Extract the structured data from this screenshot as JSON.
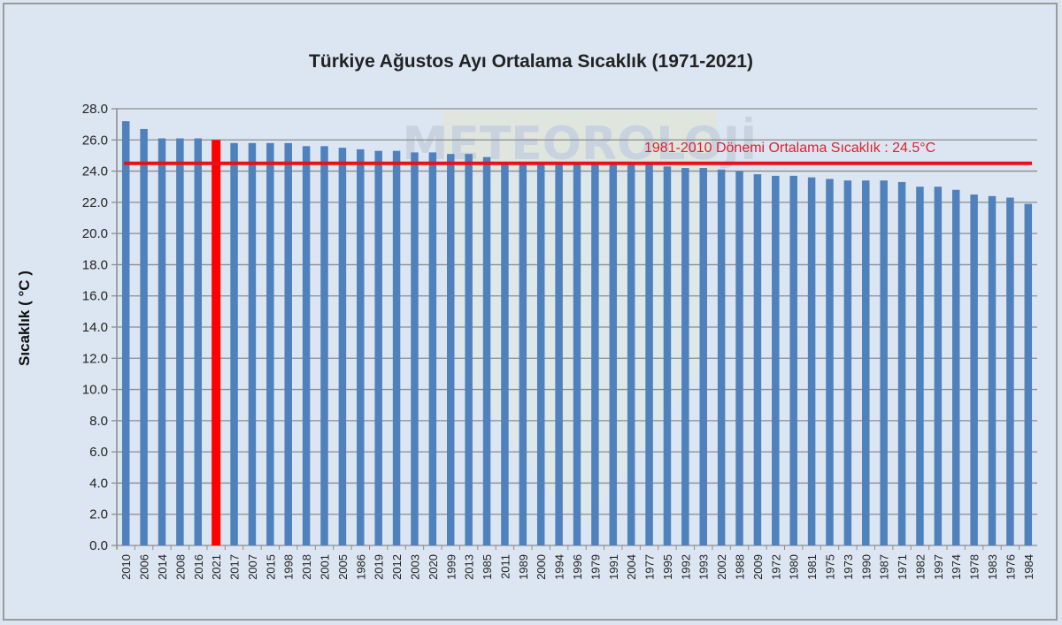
{
  "chart_data": {
    "type": "bar",
    "title": "Türkiye Ağustos Ayı Ortalama Sıcaklık (1971-2021)",
    "xlabel": "",
    "ylabel": "Sıcaklık ( °C )",
    "ylim": [
      0,
      28
    ],
    "yticks": [
      "0.0",
      "2.0",
      "4.0",
      "6.0",
      "8.0",
      "10.0",
      "12.0",
      "14.0",
      "16.0",
      "18.0",
      "20.0",
      "22.0",
      "24.0",
      "26.0",
      "28.0"
    ],
    "grid": true,
    "legend": null,
    "categories": [
      "2010",
      "2006",
      "2014",
      "2008",
      "2016",
      "2021",
      "2017",
      "2007",
      "2015",
      "1998",
      "2018",
      "2001",
      "2005",
      "1986",
      "2019",
      "2012",
      "2003",
      "2020",
      "1999",
      "2013",
      "1985",
      "2011",
      "1989",
      "2000",
      "1994",
      "1996",
      "1979",
      "1991",
      "2004",
      "1977",
      "1995",
      "1992",
      "1993",
      "2002",
      "1988",
      "2009",
      "1972",
      "1980",
      "1981",
      "1975",
      "1973",
      "1990",
      "1987",
      "1971",
      "1982",
      "1997",
      "1974",
      "1978",
      "1983",
      "1976",
      "1984"
    ],
    "values": [
      27.2,
      26.7,
      26.1,
      26.1,
      26.1,
      26.0,
      25.8,
      25.8,
      25.8,
      25.8,
      25.6,
      25.6,
      25.5,
      25.4,
      25.3,
      25.3,
      25.2,
      25.2,
      25.1,
      25.1,
      24.9,
      24.6,
      24.5,
      24.5,
      24.5,
      24.5,
      24.5,
      24.5,
      24.4,
      24.4,
      24.3,
      24.2,
      24.2,
      24.1,
      24.0,
      23.8,
      23.7,
      23.7,
      23.6,
      23.5,
      23.4,
      23.4,
      23.4,
      23.3,
      23.0,
      23.0,
      22.8,
      22.5,
      22.4,
      22.3,
      21.9
    ],
    "highlight": {
      "category": "2021",
      "color": "#ff0000"
    },
    "reference_line": {
      "value": 24.5,
      "label": "1981-2010  Dönemi  Ortalama Sıcaklık : 24.5°C",
      "color": "#e8101a"
    },
    "bar_color": "#4f81bd",
    "watermark": "METEOROLOJİ"
  },
  "labels": {
    "title": "Türkiye Ağustos Ayı Ortalama Sıcaklık (1971-2021)",
    "ylabel": "Sıcaklık ( °C )",
    "ref_label": "1981-2010  Dönemi  Ortalama Sıcaklık : 24.5°C"
  }
}
